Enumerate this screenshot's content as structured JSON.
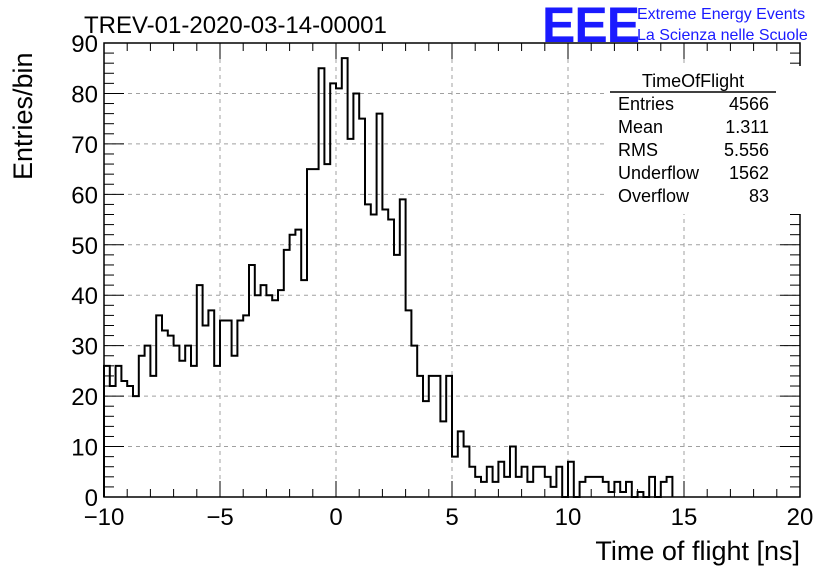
{
  "logo": {
    "mark": "EEE",
    "line1": "Extreme Energy Events",
    "line2": "La Scienza nelle Scuole",
    "color": "#1a1aff"
  },
  "stats_box": {
    "name": "TimeOfFlight",
    "rows": [
      {
        "label": "Entries",
        "value": "4566"
      },
      {
        "label": "Mean",
        "value": "1.311"
      },
      {
        "label": "RMS",
        "value": "5.556"
      },
      {
        "label": "Underflow",
        "value": "1562"
      },
      {
        "label": "Overflow",
        "value": "83"
      }
    ]
  },
  "chart_data": {
    "type": "bar",
    "style": "step-histogram",
    "title": "TREV-01-2020-03-14-00001",
    "xlabel": "Time of flight [ns]",
    "ylabel": "Entries/bin",
    "xlim": [
      -10,
      20
    ],
    "ylim": [
      0,
      90
    ],
    "xticks": [
      -10,
      -5,
      0,
      5,
      10,
      15,
      20
    ],
    "yticks": [
      0,
      10,
      20,
      30,
      40,
      50,
      60,
      70,
      80,
      90
    ],
    "grid": true,
    "bin_width": 0.25,
    "values": [
      26,
      22,
      26,
      23,
      22,
      20,
      28,
      30,
      24,
      36,
      33,
      32,
      30,
      27,
      30,
      26,
      42,
      34,
      37,
      26,
      35,
      35,
      28,
      35,
      36,
      46,
      40,
      42,
      40,
      39,
      41,
      49,
      52,
      53,
      43,
      65,
      65,
      85,
      66,
      82,
      81,
      87,
      71,
      80,
      75,
      58,
      56,
      76,
      57,
      55,
      48,
      59,
      37,
      30,
      24,
      19,
      24,
      24,
      15,
      24,
      8,
      13,
      10,
      6,
      4,
      3,
      6,
      3,
      7,
      4,
      10,
      4,
      6,
      3,
      6,
      6,
      4,
      2,
      6,
      0,
      7,
      0,
      3,
      4,
      4,
      4,
      3,
      1,
      3,
      1,
      3,
      0,
      1,
      0,
      4,
      0,
      3,
      4
    ],
    "line_color": "#000000"
  }
}
